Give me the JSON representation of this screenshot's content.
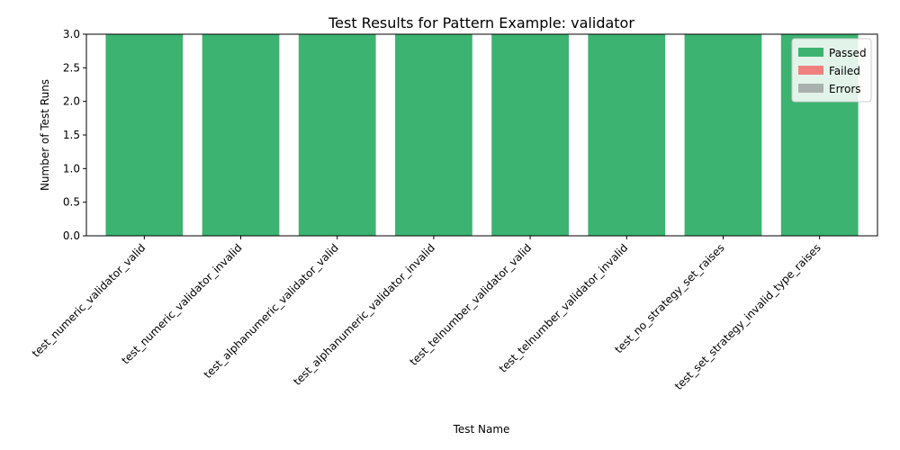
{
  "chart_data": {
    "type": "bar",
    "stacked": true,
    "title": "Test Results for Pattern Example: validator",
    "xlabel": "Test Name",
    "ylabel": "Number of Test Runs",
    "ylim": [
      0,
      3
    ],
    "yticks": [
      "0.0",
      "0.5",
      "1.0",
      "1.5",
      "2.0",
      "2.5",
      "3.0"
    ],
    "categories": [
      "test_numeric_validator_valid",
      "test_numeric_validator_invalid",
      "test_alphanumeric_validator_valid",
      "test_alphanumeric_validator_invalid",
      "test_telnumber_validator_valid",
      "test_telnumber_validator_invalid",
      "test_no_strategy_set_raises",
      "test_set_strategy_invalid_type_raises"
    ],
    "series": [
      {
        "name": "Passed",
        "color": "#3cb371",
        "values": [
          3,
          3,
          3,
          3,
          3,
          3,
          3,
          3
        ]
      },
      {
        "name": "Failed",
        "color": "#f08080",
        "values": [
          0,
          0,
          0,
          0,
          0,
          0,
          0,
          0
        ]
      },
      {
        "name": "Errors",
        "color": "#a9b1ac",
        "values": [
          0,
          0,
          0,
          0,
          0,
          0,
          0,
          0
        ]
      }
    ],
    "legend": "top-right",
    "grid": false
  }
}
